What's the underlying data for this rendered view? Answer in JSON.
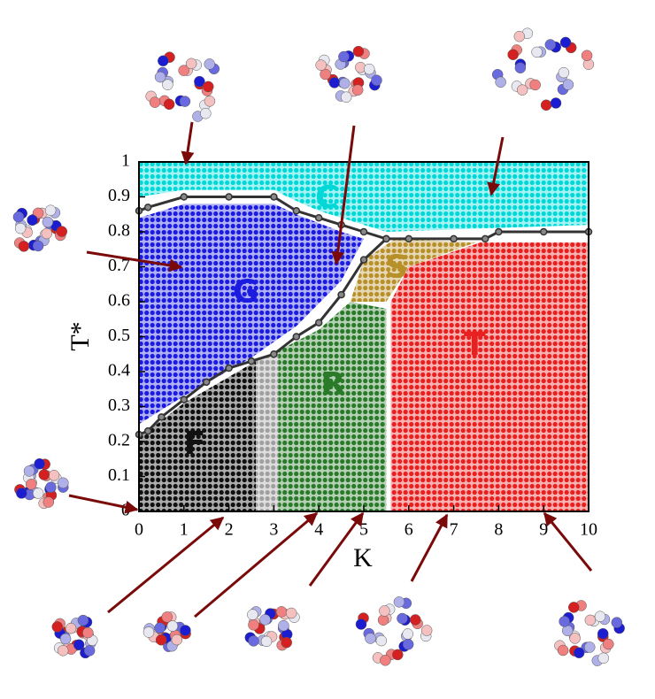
{
  "chart_data": {
    "type": "phase-diagram",
    "xlabel": "K",
    "ylabel": "T*",
    "xlim": [
      0,
      10
    ],
    "ylim": [
      0,
      1
    ],
    "xticks": [
      0,
      1,
      2,
      3,
      4,
      5,
      6,
      7,
      8,
      9,
      10
    ],
    "yticks": [
      0,
      0.1,
      0.2,
      0.3,
      0.4,
      0.5,
      0.6,
      0.7,
      0.8,
      0.9,
      1
    ],
    "regions": [
      {
        "name": "C",
        "color": "#00d8d8",
        "x": [
          0,
          10,
          10,
          5.5,
          5,
          4,
          3.3,
          3,
          1,
          0
        ],
        "y": [
          1,
          1,
          0.82,
          0.8,
          0.82,
          0.86,
          0.9,
          0.92,
          0.92,
          0.9
        ]
      },
      {
        "name": "G",
        "color": "#1c1ce0",
        "x": [
          0,
          0,
          1,
          3,
          3.5,
          4.5,
          5,
          4.5,
          3.5,
          2.5,
          1,
          0
        ],
        "y": [
          0.25,
          0.84,
          0.88,
          0.88,
          0.85,
          0.8,
          0.78,
          0.66,
          0.53,
          0.44,
          0.33,
          0.25
        ]
      },
      {
        "name": "F",
        "color": "#111111",
        "x": [
          0,
          2.6,
          2.6,
          1,
          0
        ],
        "y": [
          0,
          0,
          0.43,
          0.31,
          0.21
        ]
      },
      {
        "name": null,
        "color": "#a0a0a0",
        "x": [
          2.6,
          3.1,
          3.1,
          2.6
        ],
        "y": [
          0,
          0,
          0.46,
          0.43
        ]
      },
      {
        "name": "R",
        "color": "#2a7a2a",
        "x": [
          3.1,
          5.5,
          5.5,
          4.7,
          4,
          3.1
        ],
        "y": [
          0,
          0,
          0.58,
          0.6,
          0.52,
          0.46
        ]
      },
      {
        "name": "S",
        "color": "#b8902a",
        "x": [
          4.7,
          5.5,
          6,
          7.5,
          5.7,
          5
        ],
        "y": [
          0.6,
          0.6,
          0.7,
          0.77,
          0.78,
          0.72
        ]
      },
      {
        "name": "T",
        "color": "#e82020",
        "x": [
          5.6,
          10,
          10,
          7.6,
          6,
          5.6
        ],
        "y": [
          0,
          0,
          0.77,
          0.77,
          0.7,
          0.6
        ]
      }
    ],
    "boundaries": [
      {
        "color": "#333333",
        "x": [
          0,
          0.2,
          0.5,
          1,
          1.5,
          2,
          2.5,
          3,
          3.5,
          4,
          4.5,
          5,
          5.5,
          6,
          7,
          7.7,
          8,
          9,
          10
        ],
        "values": [
          0.22,
          0.23,
          0.27,
          0.32,
          0.37,
          0.41,
          0.43,
          0.45,
          0.5,
          0.54,
          0.62,
          0.72,
          0.78,
          0.78,
          0.78,
          0.78,
          0.8,
          0.8,
          0.8
        ]
      },
      {
        "color": "#333333",
        "x": [
          0,
          0.2,
          1,
          2,
          3,
          3.5,
          4,
          4.5,
          5,
          5.5
        ],
        "values": [
          0.86,
          0.87,
          0.9,
          0.9,
          0.9,
          0.86,
          0.84,
          0.82,
          0.8,
          0.78
        ]
      }
    ]
  }
}
